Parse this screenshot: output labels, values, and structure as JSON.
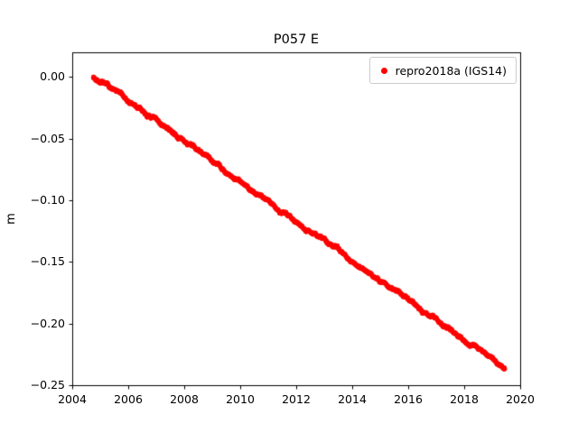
{
  "figure": {
    "title": "P057 E",
    "background": "#ffffff"
  },
  "chart_data": {
    "type": "scatter",
    "title": "P057 E",
    "xlabel": "",
    "ylabel": "m",
    "xlim": [
      2004,
      2020
    ],
    "ylim": [
      -0.25,
      0.02
    ],
    "grid": false,
    "legend_position": "upper right",
    "xticks": [
      {
        "value": 2004,
        "label": "2004"
      },
      {
        "value": 2006,
        "label": "2006"
      },
      {
        "value": 2008,
        "label": "2008"
      },
      {
        "value": 2010,
        "label": "2010"
      },
      {
        "value": 2012,
        "label": "2012"
      },
      {
        "value": 2014,
        "label": "2014"
      },
      {
        "value": 2016,
        "label": "2016"
      },
      {
        "value": 2018,
        "label": "2018"
      },
      {
        "value": 2020,
        "label": "2020"
      }
    ],
    "yticks": [
      {
        "value": 0.0,
        "label": "0.00"
      },
      {
        "value": -0.05,
        "label": "−0.05"
      },
      {
        "value": -0.1,
        "label": "−0.10"
      },
      {
        "value": -0.15,
        "label": "−0.15"
      },
      {
        "value": -0.2,
        "label": "−0.20"
      },
      {
        "value": -0.25,
        "label": "−0.25"
      }
    ],
    "series": [
      {
        "name": "repro2018a (IGS14)",
        "color": "#ff0000",
        "marker": "dot",
        "marker_radius_px": 2.4,
        "x_start": 2004.75,
        "x_end": 2019.45,
        "y_start": 0.0,
        "y_end": -0.236,
        "slope_m_per_yr": -0.01605,
        "noise_amplitude_m": 0.0012,
        "white_noise_m": 0.0012,
        "n_points": 3650,
        "seed": 7,
        "sample_points": [
          [
            2004.75,
            0.0
          ],
          [
            2006.0,
            -0.02
          ],
          [
            2008.0,
            -0.052
          ],
          [
            2010.0,
            -0.084
          ],
          [
            2012.0,
            -0.116
          ],
          [
            2014.0,
            -0.148
          ],
          [
            2016.0,
            -0.181
          ],
          [
            2018.0,
            -0.213
          ],
          [
            2019.45,
            -0.236
          ]
        ]
      }
    ]
  }
}
